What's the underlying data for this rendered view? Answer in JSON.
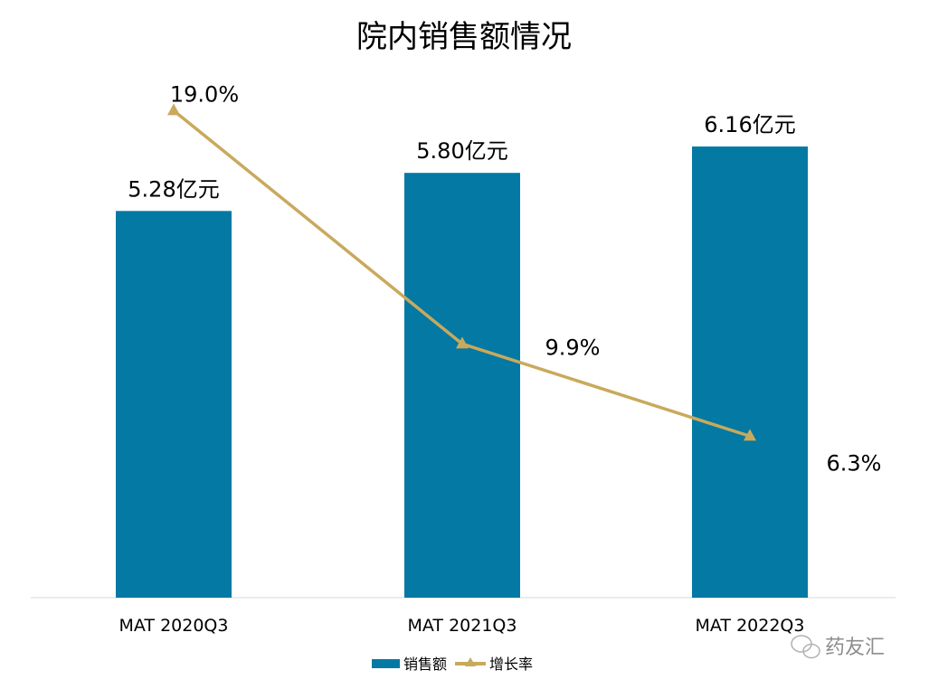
{
  "chart_data": {
    "type": "bar",
    "title": "院内销售额情况",
    "categories": [
      "MAT 2020Q3",
      "MAT 2021Q3",
      "MAT 2022Q3"
    ],
    "series": [
      {
        "name": "销售额",
        "type": "bar",
        "unit": "亿元",
        "values": [
          5.28,
          5.8,
          6.16
        ],
        "labels": [
          "5.28亿元",
          "5.80亿元",
          "6.16亿元"
        ],
        "color": "#0379A3",
        "ylim": [
          0,
          7
        ]
      },
      {
        "name": "增长率",
        "type": "line",
        "unit": "%",
        "values": [
          19.0,
          9.9,
          6.3
        ],
        "labels": [
          "19.0%",
          "9.9%",
          "6.3%"
        ],
        "color": "#C9A95C",
        "marker": "triangle",
        "ylim": [
          0,
          20
        ],
        "axis": "secondary"
      }
    ],
    "grid": false,
    "legend": "bottom"
  },
  "watermark": "药友汇"
}
